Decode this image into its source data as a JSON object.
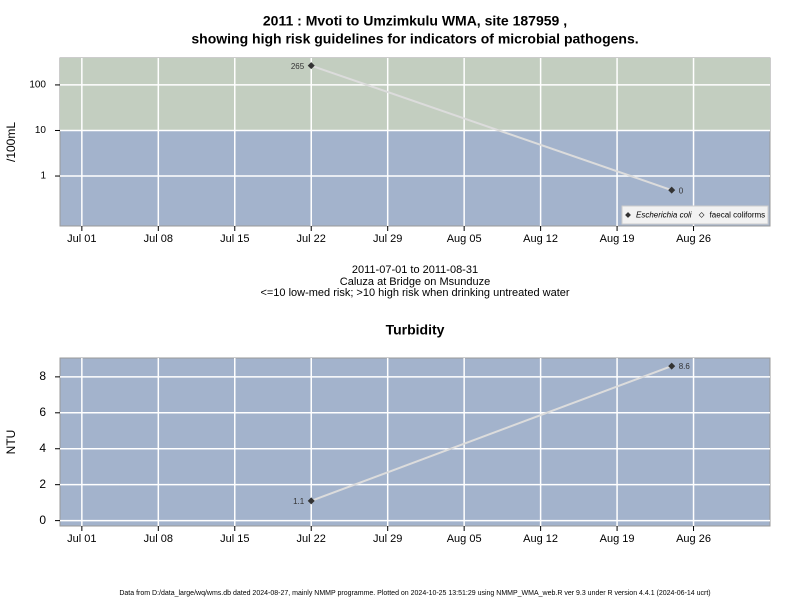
{
  "chart_data": [
    {
      "type": "line",
      "title": [
        "2011 : Mvoti to Umzimkulu WMA, site 187959 ,",
        "showing high risk guidelines for indicators of microbial pathogens."
      ],
      "subtitle": [
        "2011-07-01 to 2011-08-31",
        "Caluza at Bridge on Msunduze",
        "<=10 low-med risk; >10 high risk when drinking untreated water"
      ],
      "y_label": "/100mL",
      "log_y": true,
      "ylim": [
        0.08,
        390
      ],
      "yticks": [
        1,
        10,
        100
      ],
      "xlim": [
        "Jun 29",
        "Sep 02"
      ],
      "xticks": [
        "Jul 01",
        "Jul 08",
        "Jul 15",
        "Jul 22",
        "Jul 29",
        "Aug 05",
        "Aug 12",
        "Aug 19",
        "Aug 26"
      ],
      "x": [
        "Jul 22",
        "Aug 24"
      ],
      "grid": true,
      "background": "#a3b3cc",
      "threshold": 10,
      "high_risk_color": "#c3cec0",
      "legend": "bottom-right",
      "series": [
        {
          "name": "Escherichia coli",
          "color": "#333333",
          "values": [
            265,
            0.49
          ],
          "value_labels": [
            "265",
            "0"
          ]
        },
        {
          "name": "faecal coliforms",
          "color": "#333333",
          "values": [
            null,
            null
          ]
        }
      ]
    },
    {
      "type": "line",
      "title": "Turbidity",
      "y_label": "NTU",
      "ylim": [
        -0.3,
        9.05
      ],
      "yticks": [
        0,
        2,
        4,
        6,
        8
      ],
      "xlim": [
        "Jun 29",
        "Sep 02"
      ],
      "xticks": [
        "Jul 01",
        "Jul 08",
        "Jul 15",
        "Jul 22",
        "Jul 29",
        "Aug 05",
        "Aug 12",
        "Aug 19",
        "Aug 26"
      ],
      "x": [
        "Jul 22",
        "Aug 24"
      ],
      "grid": true,
      "background": "#a3b3cc",
      "series": [
        {
          "name": "Turbidity",
          "color": "#333333",
          "values": [
            1.1,
            8.6
          ]
        }
      ]
    }
  ],
  "footer": "Data from D:/data_large/wq/wms.db dated 2024-08-27, mainly NMMP programme. Plotted on 2024-10-25 13:51:29 using NMMP_WMA_web.R ver 9.3 under R version 4.4.1 (2024-06-14 ucrt)"
}
